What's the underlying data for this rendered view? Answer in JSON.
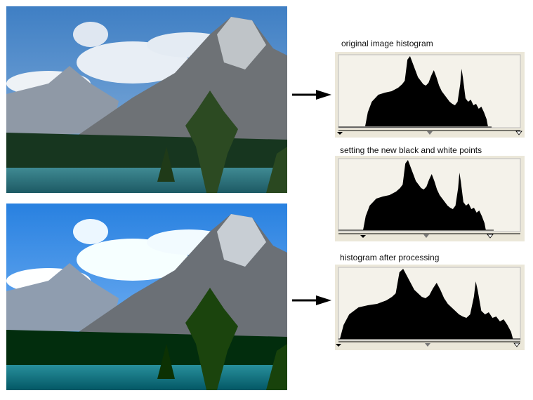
{
  "panels": [
    {
      "label": "original image histogram"
    },
    {
      "label": "setting the new black and white points"
    },
    {
      "label": "histogram after processing"
    }
  ]
}
